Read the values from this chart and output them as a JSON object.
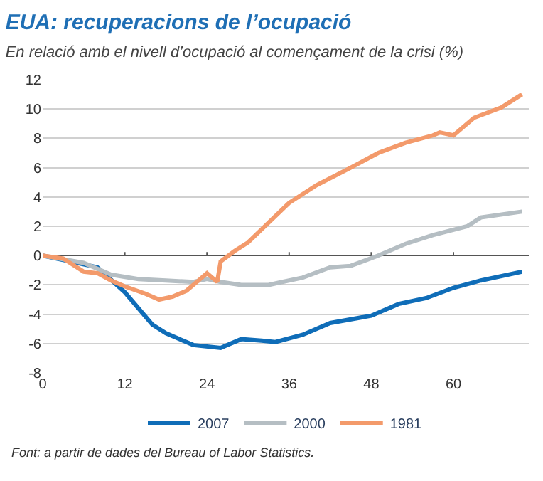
{
  "chart_data": {
    "type": "line",
    "title": "EUA: recuperacions de l’ocupació",
    "subtitle": "En relació amb el nivell d’ocupació al començament de la crisi (%)",
    "annotations": [
      "Font: a partir de dades del Bureau of Labor Statistics."
    ],
    "xlim": [
      0,
      71
    ],
    "xticks": [
      0,
      12,
      24,
      36,
      48,
      60
    ],
    "ylim": [
      -8,
      12
    ],
    "yticks": [
      -8,
      -6,
      -4,
      -2,
      0,
      2,
      4,
      6,
      8,
      10,
      12
    ],
    "grid": "y",
    "legend": "bottom",
    "line_style": "solid",
    "marker": "none",
    "series": [
      {
        "name": "2007",
        "color": "#0f6db8",
        "x": [
          0,
          8,
          12,
          16,
          18,
          22,
          26,
          27,
          29,
          32,
          34,
          38,
          42,
          48,
          52,
          56,
          60,
          64,
          70
        ],
        "values": [
          0,
          -0.8,
          -2.5,
          -4.7,
          -5.3,
          -6.1,
          -6.3,
          -6.1,
          -5.7,
          -5.8,
          -5.9,
          -5.4,
          -4.6,
          -4.1,
          -3.3,
          -2.9,
          -2.2,
          -1.7,
          -1.1
        ]
      },
      {
        "name": "2000",
        "color": "#b5bec3",
        "x": [
          0,
          6,
          10,
          14,
          18,
          22,
          24,
          26,
          29,
          33,
          35,
          38,
          42,
          45,
          49,
          53,
          57,
          62,
          64,
          70
        ],
        "values": [
          0,
          -0.5,
          -1.3,
          -1.6,
          -1.7,
          -1.8,
          -1.6,
          -1.8,
          -2.0,
          -2.0,
          -1.8,
          -1.5,
          -0.8,
          -0.7,
          0,
          0.8,
          1.4,
          2.0,
          2.6,
          3.0
        ]
      },
      {
        "name": "1981",
        "color": "#f39a6b",
        "x": [
          0,
          3,
          6,
          8,
          10,
          12,
          15,
          17,
          19,
          21,
          23,
          24,
          25.5,
          26,
          28,
          30,
          32,
          36,
          40,
          45,
          49,
          53,
          57,
          58,
          60,
          63,
          67,
          70
        ],
        "values": [
          0,
          -0.2,
          -1.1,
          -1.2,
          -1.7,
          -2.1,
          -2.6,
          -3.0,
          -2.8,
          -2.4,
          -1.6,
          -1.2,
          -1.8,
          -0.4,
          0.3,
          0.9,
          1.8,
          3.6,
          4.8,
          6.0,
          7.0,
          7.7,
          8.2,
          8.4,
          8.2,
          9.4,
          10.1,
          11.0
        ]
      }
    ]
  }
}
